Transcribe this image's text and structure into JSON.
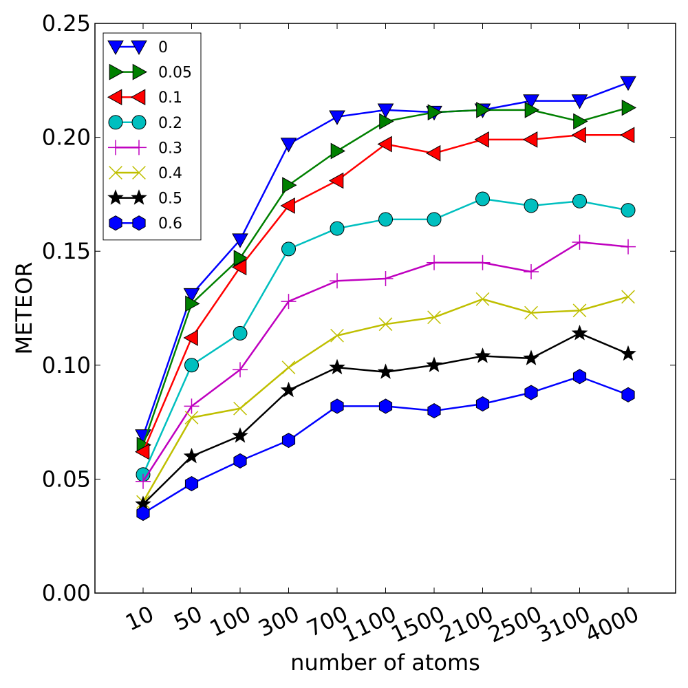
{
  "chart_data": {
    "type": "line",
    "categories": [
      "10",
      "50",
      "100",
      "300",
      "700",
      "1100",
      "1500",
      "2100",
      "2500",
      "3100",
      "4000"
    ],
    "xlabel": "number of atoms",
    "ylabel": "METEOR",
    "ylim": [
      0,
      0.25
    ],
    "yticks": [
      "0.00",
      "0.05",
      "0.10",
      "0.15",
      "0.20",
      "0.25"
    ],
    "grid": false,
    "legend_position": "top-left",
    "series": [
      {
        "name": "0",
        "color": "#0000ff",
        "marker": "triangle-down",
        "values": [
          0.069,
          0.131,
          0.155,
          0.197,
          0.209,
          0.212,
          0.211,
          0.212,
          0.216,
          0.216,
          0.224
        ]
      },
      {
        "name": "0.05",
        "color": "#008000",
        "marker": "triangle-right",
        "values": [
          0.065,
          0.127,
          0.147,
          0.179,
          0.194,
          0.207,
          0.211,
          0.212,
          0.212,
          0.207,
          0.213
        ]
      },
      {
        "name": "0.1",
        "color": "#ff0000",
        "marker": "triangle-left",
        "values": [
          0.062,
          0.112,
          0.143,
          0.17,
          0.181,
          0.197,
          0.193,
          0.199,
          0.199,
          0.201,
          0.201
        ]
      },
      {
        "name": "0.2",
        "color": "#00bfbf",
        "marker": "circle",
        "values": [
          0.052,
          0.1,
          0.114,
          0.151,
          0.16,
          0.164,
          0.164,
          0.173,
          0.17,
          0.172,
          0.168
        ]
      },
      {
        "name": "0.3",
        "color": "#bf00bf",
        "marker": "plus",
        "values": [
          0.049,
          0.082,
          0.098,
          0.128,
          0.137,
          0.138,
          0.145,
          0.145,
          0.141,
          0.154,
          0.152
        ]
      },
      {
        "name": "0.4",
        "color": "#bfbf00",
        "marker": "x",
        "values": [
          0.04,
          0.077,
          0.081,
          0.099,
          0.113,
          0.118,
          0.121,
          0.129,
          0.123,
          0.124,
          0.13
        ]
      },
      {
        "name": "0.5",
        "color": "#000000",
        "marker": "star",
        "values": [
          0.039,
          0.06,
          0.069,
          0.089,
          0.099,
          0.097,
          0.1,
          0.104,
          0.103,
          0.114,
          0.105
        ]
      },
      {
        "name": "0.6",
        "color": "#0000ff",
        "marker": "hexagon",
        "values": [
          0.035,
          0.048,
          0.058,
          0.067,
          0.082,
          0.082,
          0.08,
          0.083,
          0.088,
          0.095,
          0.087
        ]
      }
    ]
  }
}
